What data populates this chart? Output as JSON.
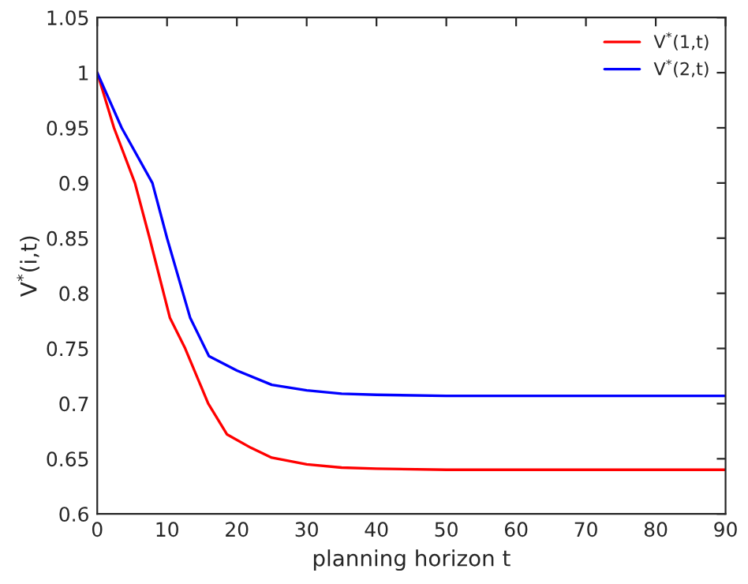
{
  "chart_data": {
    "type": "line",
    "xlabel": "planning horizon t",
    "ylabel": "V$^{*}$(i,t)",
    "xlim": [
      0,
      90
    ],
    "xticks": [
      0,
      10,
      20,
      30,
      40,
      50,
      60,
      70,
      80,
      90
    ],
    "ylim": [
      0.6,
      1.05
    ],
    "yticks": [
      0.6,
      0.65,
      0.7,
      0.75,
      0.8,
      0.85,
      0.9,
      0.95,
      1,
      1.05
    ],
    "grid": false,
    "legend": "top right",
    "line_style": "solid",
    "marker": "none",
    "series": [
      {
        "name": "V$^{*}$(1,t)",
        "color": "#ff0000",
        "x": [
          0,
          2.4,
          5.4,
          7.5,
          10.4,
          12.6,
          15.9,
          18.6,
          22,
          25,
          30,
          35,
          40,
          50,
          60,
          90
        ],
        "values": [
          1,
          0.95,
          0.9,
          0.85,
          0.778,
          0.75,
          0.7,
          0.672,
          0.66,
          0.651,
          0.645,
          0.642,
          0.641,
          0.64,
          0.64,
          0.64
        ]
      },
      {
        "name": "V$^{*}$(2,t)",
        "color": "#0000ff",
        "x": [
          0,
          3.5,
          7.9,
          10,
          13.3,
          16,
          20,
          25,
          30,
          35,
          40,
          50,
          60,
          90
        ],
        "values": [
          1,
          0.95,
          0.9,
          0.85,
          0.778,
          0.743,
          0.73,
          0.717,
          0.712,
          0.709,
          0.708,
          0.707,
          0.707,
          0.707
        ]
      }
    ]
  }
}
